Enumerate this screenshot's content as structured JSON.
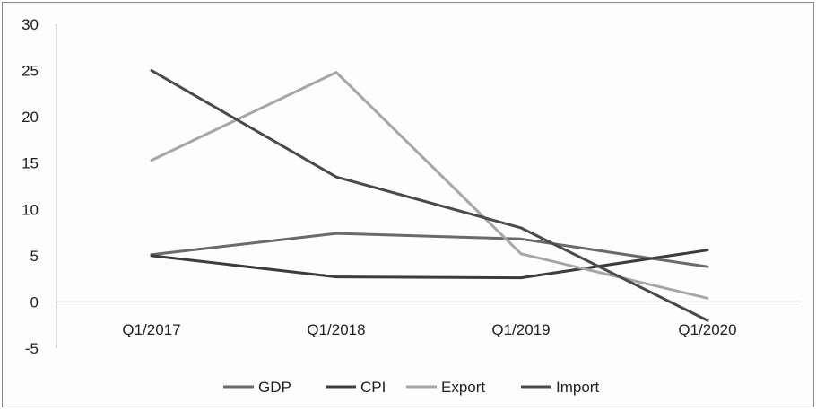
{
  "chart_data": {
    "type": "line",
    "categories": [
      "Q1/2017",
      "Q1/2018",
      "Q1/2019",
      "Q1/2020"
    ],
    "ylim": [
      -5,
      30
    ],
    "yticks": [
      30,
      25,
      20,
      15,
      10,
      5,
      0,
      -5
    ],
    "grid": false,
    "legend_position": "bottom",
    "series": [
      {
        "name": "GDP",
        "values": [
          5.1,
          7.4,
          6.8,
          3.8
        ],
        "color": "#6a6a6a"
      },
      {
        "name": "CPI",
        "values": [
          5.0,
          2.7,
          2.6,
          5.6
        ],
        "color": "#3c3c3c"
      },
      {
        "name": "Export",
        "values": [
          15.3,
          24.8,
          5.2,
          0.4
        ],
        "color": "#a6a6a6"
      },
      {
        "name": "Import",
        "values": [
          25.0,
          13.5,
          8.0,
          -2.0
        ],
        "color": "#4a4a4a"
      }
    ]
  }
}
